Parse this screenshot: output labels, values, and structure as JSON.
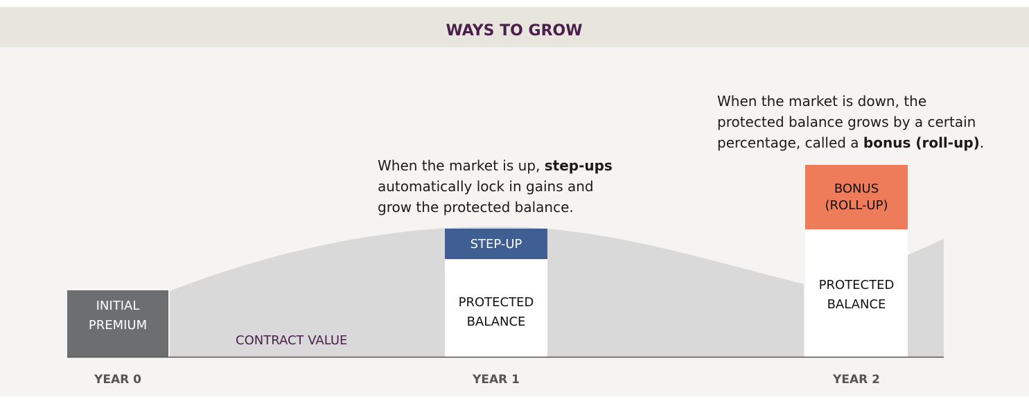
{
  "title": "WAYS TO GROW",
  "axis_labels": [
    "YEAR 0",
    "YEAR 1",
    "YEAR 2"
  ],
  "contract_value": "CONTRACT VALUE",
  "boxes": {
    "initial_premium": [
      "INITIAL",
      "PREMIUM"
    ],
    "step_up": "STEP-UP",
    "protected_balance_1": [
      "PROTECTED",
      "BALANCE"
    ],
    "bonus": [
      "BONUS",
      "(ROLL-UP)"
    ],
    "protected_balance_2": [
      "PROTECTED",
      "BALANCE"
    ]
  },
  "annotations": [
    [
      [
        {
          "text": "When the market is up, "
        },
        {
          "text": "step-ups",
          "bold": true
        }
      ],
      [
        {
          "text": "automatically lock in gains and"
        }
      ],
      [
        {
          "text": "grow the protected balance."
        }
      ]
    ],
    [
      [
        {
          "text": "When the market is down, the"
        }
      ],
      [
        {
          "text": "protected balance grows by a certain"
        }
      ],
      [
        {
          "text": "percentage, called a "
        },
        {
          "text": "bonus (roll-up)",
          "bold": true
        },
        {
          "text": "."
        }
      ]
    ]
  ]
}
